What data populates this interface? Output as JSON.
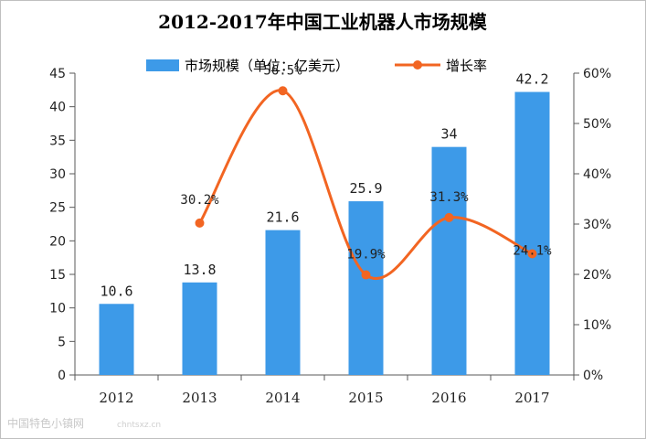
{
  "chart_data": {
    "type": "bar",
    "title": "2012-2017年中国工业机器人市场规模",
    "categories": [
      "2012",
      "2013",
      "2014",
      "2015",
      "2016",
      "2017"
    ],
    "series": [
      {
        "name": "市场规模（单位：亿美元）",
        "type": "bar",
        "axis": "left",
        "color": "#3d9ae8",
        "values": [
          10.6,
          13.8,
          21.6,
          25.9,
          34,
          42.2
        ],
        "labels": [
          "10.6",
          "13.8",
          "21.6",
          "25.9",
          "34",
          "42.2"
        ]
      },
      {
        "name": "增长率",
        "type": "line",
        "axis": "right",
        "color": "#f26522",
        "values": [
          null,
          30.2,
          56.5,
          19.9,
          31.3,
          24.1
        ],
        "labels": [
          "",
          "30.2%",
          "56.5%",
          "19.9%",
          "31.3%",
          "24.1%"
        ]
      }
    ],
    "y_left": {
      "ylim": [
        0,
        45
      ],
      "ticks": [
        "0",
        "5",
        "10",
        "15",
        "20",
        "25",
        "30",
        "35",
        "40",
        "45"
      ]
    },
    "y_right": {
      "ylim": [
        0,
        60
      ],
      "ticks": [
        "0%",
        "10%",
        "20%",
        "30%",
        "40%",
        "50%",
        "60%"
      ]
    },
    "legend": "top",
    "grid": false
  },
  "watermark": {
    "text": "中国特色小镇网",
    "url": "chntsxz.cn"
  }
}
